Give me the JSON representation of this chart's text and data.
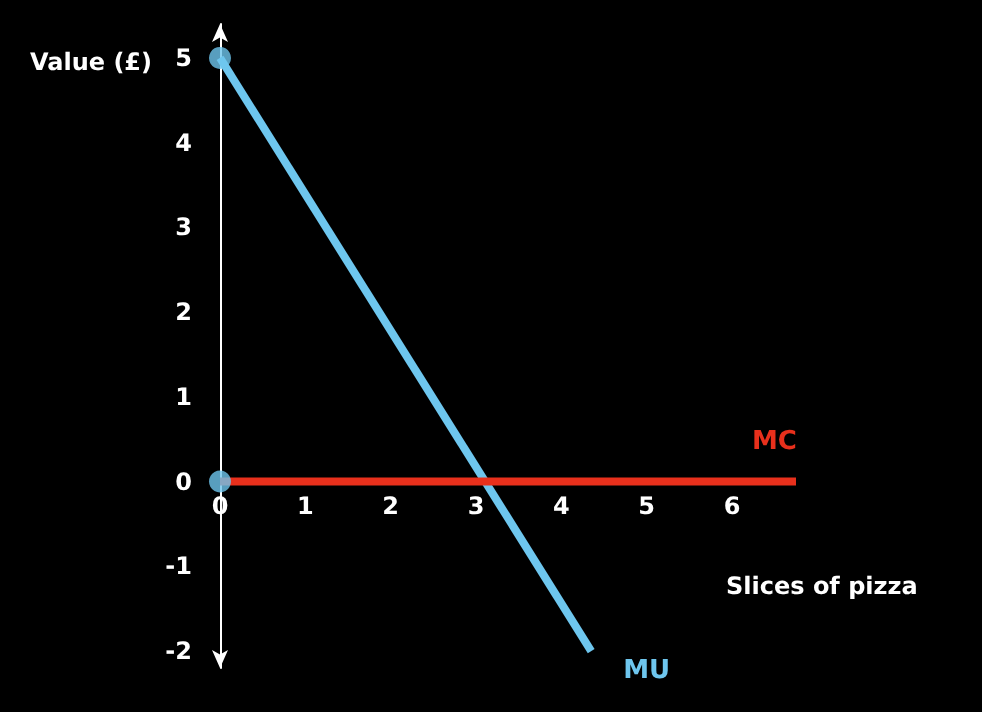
{
  "chart_data": {
    "type": "line",
    "xlabel": "Slices of pizza",
    "ylabel": "Value (£)",
    "xlim": [
      0,
      6.75
    ],
    "xticks": [
      0,
      1,
      2,
      3,
      4,
      5,
      6
    ],
    "ylim": [
      -2.2,
      5.4
    ],
    "yticks": [
      -2,
      -1,
      0,
      1,
      2,
      3,
      4,
      5
    ],
    "series": [
      {
        "name": "MU",
        "color": "#6ec6ee",
        "x": [
          0,
          4.35
        ],
        "values": [
          5,
          -2
        ],
        "marker": "none"
      },
      {
        "name": "MC",
        "color": "#e8301c",
        "x": [
          0,
          6.75
        ],
        "values": [
          0,
          0
        ],
        "marker": "none"
      },
      {
        "type": "scatter",
        "color": "#6ec6ee",
        "x": [
          0,
          0
        ],
        "values": [
          5,
          0
        ],
        "marker": "circle"
      }
    ],
    "grid": false,
    "legend": false
  }
}
